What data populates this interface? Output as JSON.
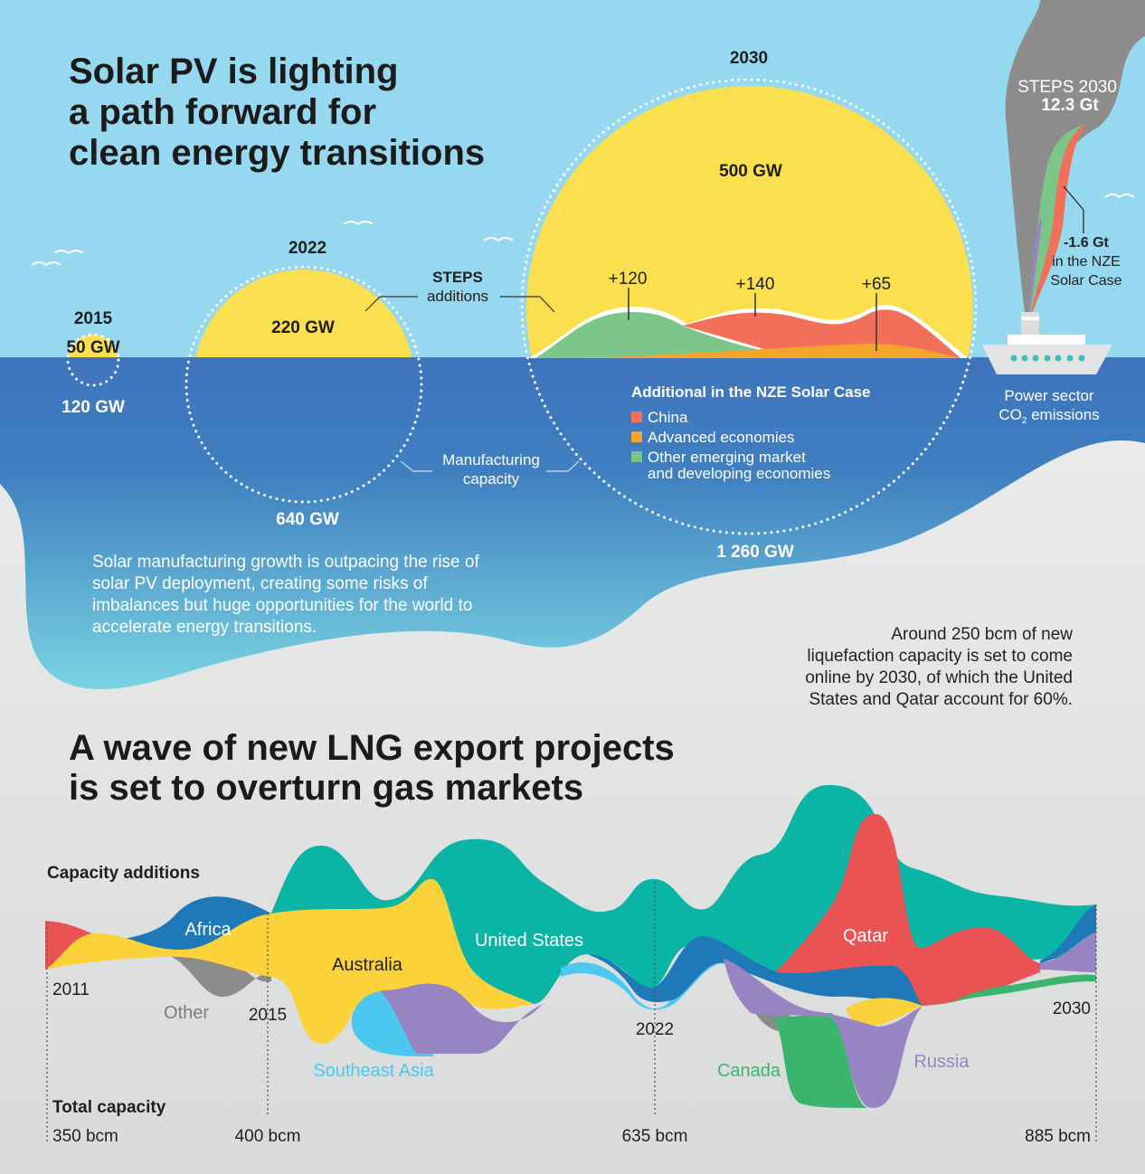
{
  "solar": {
    "title_lines": [
      "Solar PV is lighting",
      "a path forward for",
      "clean energy transitions"
    ],
    "years": {
      "y2015": {
        "year": "2015",
        "deployment": "50 GW",
        "manufacturing": "120 GW"
      },
      "y2022": {
        "year": "2022",
        "deployment": "220 GW",
        "manufacturing": "640 GW"
      },
      "y2030": {
        "year": "2030",
        "deployment": "500 GW",
        "manufacturing": "1 260 GW"
      }
    },
    "steps_label": [
      "STEPS",
      "additions"
    ],
    "manufacturing_label": [
      "Manufacturing",
      "capacity"
    ],
    "additions": [
      "+120",
      "+140",
      "+65"
    ],
    "legend": {
      "title": "Additional in the NZE Solar Case",
      "items": [
        {
          "label": "China",
          "color": "#f2705a"
        },
        {
          "label": "Advanced economies",
          "color": "#f4a52a"
        },
        {
          "label": "Other emerging market",
          "label2": "and developing economies",
          "color": "#7cc68a"
        }
      ]
    },
    "emissions": {
      "steps": "STEPS 2030",
      "steps_value": "12.3 Gt",
      "nze_value": "-1.6 Gt",
      "nze_lines": [
        "in the NZE",
        "Solar Case"
      ],
      "sector_lines": [
        "Power sector",
        "CO",
        "2",
        " emissions"
      ]
    },
    "body_lines": [
      "Solar manufacturing growth is outpacing the rise of",
      "solar PV deployment, creating some risks of",
      "imbalances but huge opportunities for the world to",
      "accelerate energy transitions."
    ]
  },
  "lng": {
    "intro_lines": [
      "Around 250 bcm of new",
      "liquefaction capacity is set to come",
      "online by 2030, of which the United",
      "States and Qatar account for 60%."
    ],
    "title_lines": [
      "A wave of new LNG export projects",
      "is set to overturn gas markets"
    ],
    "capacity_additions": "Capacity additions",
    "total_capacity": "Total capacity",
    "years": [
      "2011",
      "2015",
      "2022",
      "2030"
    ],
    "totals": [
      "350 bcm",
      "400 bcm",
      "635 bcm",
      "885 bcm"
    ],
    "regions": {
      "africa": "Africa",
      "other": "Other",
      "australia": "Australia",
      "southeast_asia": "Southeast Asia",
      "united_states": "United States",
      "qatar": "Qatar",
      "canada": "Canada",
      "russia": "Russia"
    },
    "colors": {
      "united_states": "#0bb5a6",
      "qatar": "#ea5254",
      "australia": "#fcd23a",
      "africa": "#1f78b8",
      "other": "#8b8b8b",
      "southeast_asia": "#4cc8f0",
      "russia": "#9785c3",
      "canada": "#3bb56e"
    }
  }
}
